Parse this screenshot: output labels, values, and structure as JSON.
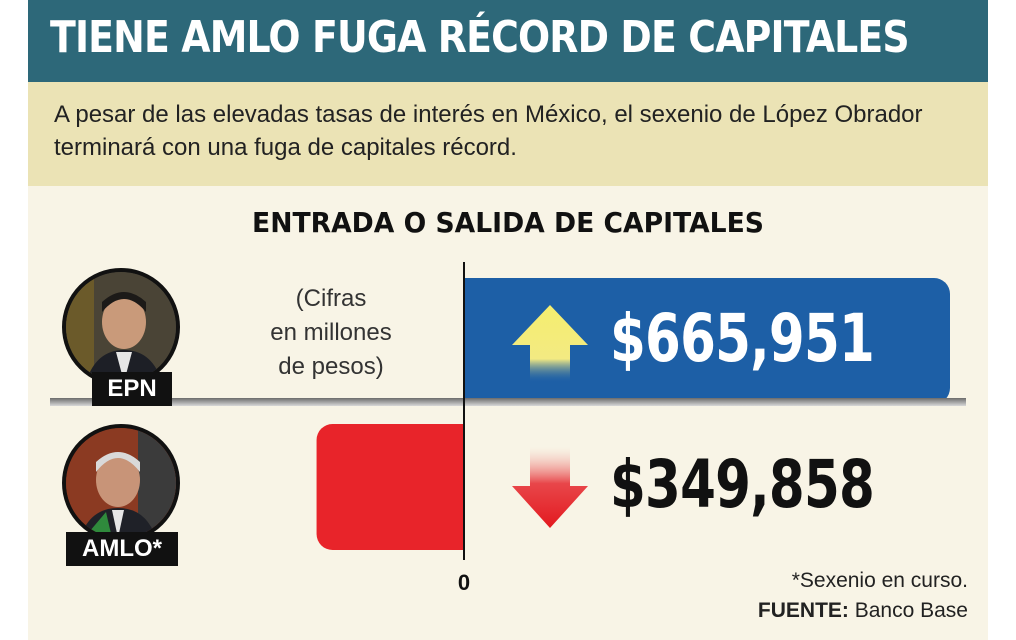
{
  "header": {
    "title": "TIENE AMLO FUGA RÉCORD DE CAPITALES",
    "subtitle": "A pesar de las elevadas tasas de interés en México, el sexenio de López Obrador terminará con una fuga de capitales récord."
  },
  "units_note": [
    "(Cifras",
    "en millones",
    "de pesos)"
  ],
  "footnote": {
    "note": "*Sexenio en curso.",
    "source_label": "FUENTE:",
    "source_value": " Banco Base"
  },
  "colors": {
    "header_bg": "#2d6879",
    "subtitle_bg": "#ebe3b5",
    "positive_bar": "#1d5fa6",
    "negative_bar": "#e8242a",
    "up_arrow": "#f2ea6b",
    "down_arrow": "#e3191f"
  },
  "chart_data": {
    "type": "bar",
    "orientation": "horizontal",
    "title": "ENTRADA O SALIDA DE CAPITALES",
    "categories": [
      "EPN",
      "AMLO*"
    ],
    "values": [
      665951,
      -349858
    ],
    "value_labels": [
      "$665,951",
      "$349,858"
    ],
    "direction_icons": [
      "up-arrow-icon",
      "down-arrow-icon"
    ],
    "xlim": [
      -560000,
      665951
    ],
    "x_tick_labels": [
      "0"
    ],
    "grid": false,
    "legend": "none"
  }
}
